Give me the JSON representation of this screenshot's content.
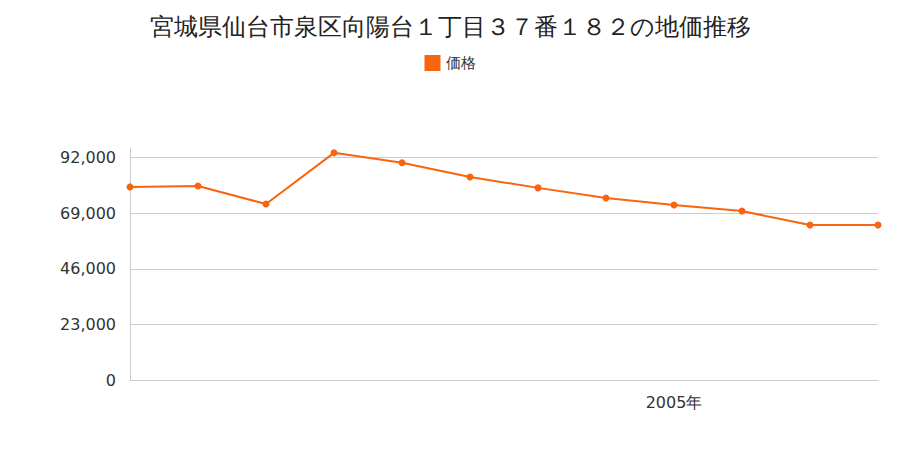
{
  "chart_data": {
    "type": "line",
    "title": "宮城県仙台市泉区向陽台１丁目３７番１８２の地価推移",
    "categories": [
      null,
      null,
      null,
      null,
      null,
      null,
      null,
      null,
      "2005年",
      null,
      null,
      null
    ],
    "series": [
      {
        "name": "価格",
        "color": "#f8640f",
        "values": [
          79900,
          80300,
          72800,
          94000,
          89900,
          84000,
          79500,
          75300,
          72400,
          69900,
          64100,
          64100
        ]
      }
    ],
    "ylim": [
      0,
      96000
    ],
    "yticks": [
      0,
      {
        "value": 23000,
        "label": "23,000"
      },
      {
        "value": 46000,
        "label": "46,000"
      },
      {
        "value": 69000,
        "label": "69,000"
      },
      {
        "value": 92000,
        "label": "92,000"
      }
    ],
    "grid": true,
    "legend": "top",
    "marker": "circle"
  }
}
